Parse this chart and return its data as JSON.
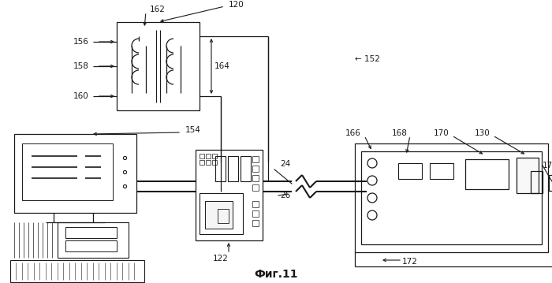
{
  "background_color": "#ffffff",
  "title": "Фиг.11",
  "title_fontsize": 10,
  "fig_width": 7.0,
  "fig_height": 3.59,
  "dpi": 100
}
